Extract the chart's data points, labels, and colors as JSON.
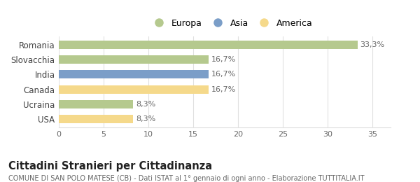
{
  "categories": [
    "Romania",
    "Slovacchia",
    "India",
    "Canada",
    "Ucraina",
    "USA"
  ],
  "values": [
    33.3,
    16.7,
    16.7,
    16.7,
    8.3,
    8.3
  ],
  "labels": [
    "33,3%",
    "16,7%",
    "16,7%",
    "16,7%",
    "8,3%",
    "8,3%"
  ],
  "colors": [
    "#b5c98e",
    "#b5c98e",
    "#7b9ec8",
    "#f5d98b",
    "#b5c98e",
    "#f5d98b"
  ],
  "legend": [
    {
      "label": "Europa",
      "color": "#b5c98e"
    },
    {
      "label": "Asia",
      "color": "#7b9ec8"
    },
    {
      "label": "America",
      "color": "#f5d98b"
    }
  ],
  "xlim": [
    0,
    37
  ],
  "xticks": [
    0,
    5,
    10,
    15,
    20,
    25,
    30,
    35
  ],
  "title": "Cittadini Stranieri per Cittadinanza",
  "subtitle": "COMUNE DI SAN POLO MATESE (CB) - Dati ISTAT al 1° gennaio di ogni anno - Elaborazione TUTTITALIA.IT",
  "bar_height": 0.55,
  "background_color": "#ffffff",
  "grid_color": "#e0e0e0",
  "label_fontsize": 8,
  "ytick_fontsize": 8.5,
  "xtick_fontsize": 8,
  "title_fontsize": 10.5,
  "subtitle_fontsize": 7
}
